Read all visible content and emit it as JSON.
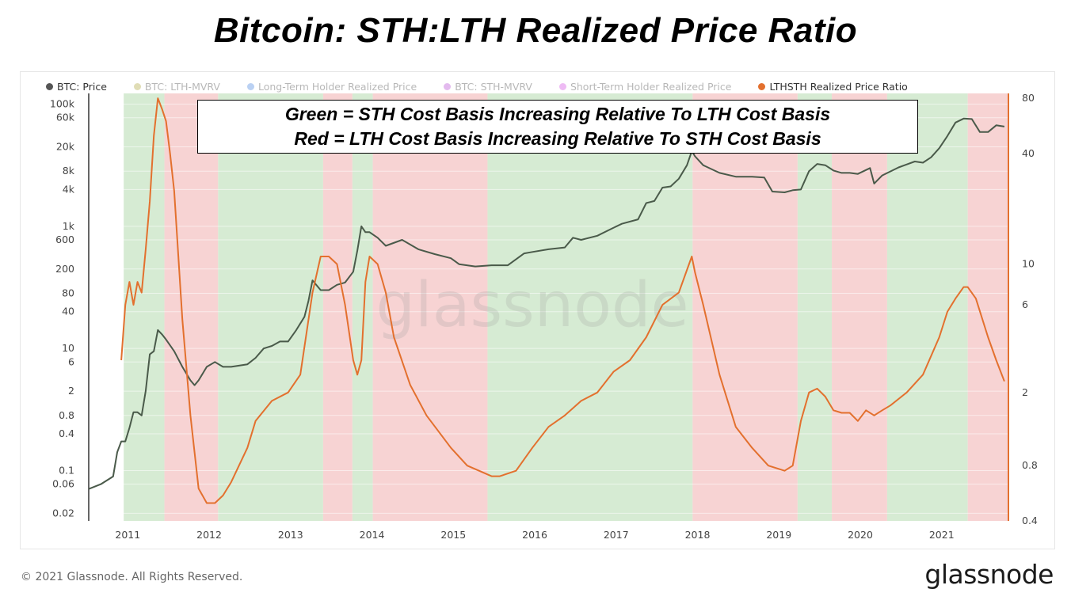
{
  "title": "Bitcoin: STH:LTH Realized Price Ratio",
  "legend": [
    {
      "label": "BTC: Price",
      "color": "#555555",
      "active": true
    },
    {
      "label": "BTC: LTH-MVRV",
      "color": "#a8a030",
      "active": false
    },
    {
      "label": "Long-Term Holder Realized Price",
      "color": "#3b7ddd",
      "active": false
    },
    {
      "label": "BTC: STH-MVRV",
      "color": "#b03bd0",
      "active": false
    },
    {
      "label": "Short-Term Holder Realized Price",
      "color": "#d040e0",
      "active": false
    },
    {
      "label": "LTHSTH Realized Price Ratio",
      "color": "#e3702e",
      "active": true
    }
  ],
  "annotation": {
    "line1": "Green = STH Cost Basis Increasing Relative To LTH Cost Basis",
    "line2": "Red = LTH Cost Basis Increasing Relative To STH Cost Basis"
  },
  "watermark": "glassnode",
  "footer": {
    "copyright": "© 2021 Glassnode. All Rights Reserved.",
    "logo": "glassnode"
  },
  "colors": {
    "price_line": "#4a5a4a",
    "ratio_line": "#e3702e",
    "green_band": "#d6ebd3",
    "red_band": "#f7d3d3"
  },
  "chart_data": {
    "type": "line",
    "x_ticks": [
      "2011",
      "2012",
      "2013",
      "2014",
      "2015",
      "2016",
      "2017",
      "2018",
      "2019",
      "2020",
      "2021"
    ],
    "xlim": [
      2010.55,
      2021.85
    ],
    "left_axis": {
      "scale": "log",
      "ylim": [
        0.015,
        150000
      ],
      "ticks": [
        "100k",
        "60k",
        "20k",
        "8k",
        "4k",
        "1k",
        "600",
        "200",
        "80",
        "40",
        "10",
        "6",
        "2",
        "0.8",
        "0.4",
        "0.1",
        "0.06",
        "0.02"
      ],
      "tick_values": [
        100000,
        60000,
        20000,
        8000,
        4000,
        1000,
        600,
        200,
        80,
        40,
        10,
        6,
        2,
        0.8,
        0.4,
        0.1,
        0.06,
        0.02
      ]
    },
    "right_axis": {
      "scale": "log",
      "ylim": [
        0.4,
        85
      ],
      "ticks": [
        "80",
        "40",
        "10",
        "6",
        "2",
        "0.8",
        "0.4"
      ],
      "tick_values": [
        80,
        40,
        10,
        6,
        2,
        0.8,
        0.4
      ]
    },
    "regimes": [
      {
        "start": 2010.98,
        "end": 2011.48,
        "color": "green"
      },
      {
        "start": 2011.48,
        "end": 2012.14,
        "color": "red"
      },
      {
        "start": 2012.14,
        "end": 2013.43,
        "color": "green"
      },
      {
        "start": 2013.43,
        "end": 2013.79,
        "color": "red"
      },
      {
        "start": 2013.79,
        "end": 2014.04,
        "color": "green"
      },
      {
        "start": 2014.04,
        "end": 2015.45,
        "color": "red"
      },
      {
        "start": 2015.45,
        "end": 2017.97,
        "color": "green"
      },
      {
        "start": 2017.97,
        "end": 2019.26,
        "color": "red"
      },
      {
        "start": 2019.26,
        "end": 2019.68,
        "color": "green"
      },
      {
        "start": 2019.68,
        "end": 2020.36,
        "color": "red"
      },
      {
        "start": 2020.36,
        "end": 2021.35,
        "color": "green"
      },
      {
        "start": 2021.35,
        "end": 2021.85,
        "color": "red"
      }
    ],
    "series": [
      {
        "name": "BTC: Price",
        "axis": "left",
        "x": [
          2010.55,
          2010.7,
          2010.85,
          2010.9,
          2010.95,
          2011.0,
          2011.05,
          2011.1,
          2011.15,
          2011.2,
          2011.25,
          2011.3,
          2011.35,
          2011.4,
          2011.45,
          2011.5,
          2011.6,
          2011.7,
          2011.8,
          2011.85,
          2011.9,
          2012.0,
          2012.1,
          2012.2,
          2012.3,
          2012.5,
          2012.6,
          2012.7,
          2012.8,
          2012.9,
          2013.0,
          2013.1,
          2013.2,
          2013.25,
          2013.3,
          2013.4,
          2013.5,
          2013.6,
          2013.7,
          2013.8,
          2013.85,
          2013.9,
          2013.95,
          2014.0,
          2014.1,
          2014.2,
          2014.4,
          2014.6,
          2014.8,
          2015.0,
          2015.1,
          2015.3,
          2015.5,
          2015.7,
          2015.9,
          2016.0,
          2016.2,
          2016.4,
          2016.5,
          2016.6,
          2016.8,
          2017.0,
          2017.1,
          2017.3,
          2017.4,
          2017.5,
          2017.6,
          2017.7,
          2017.8,
          2017.9,
          2017.96,
          2018.0,
          2018.1,
          2018.3,
          2018.5,
          2018.7,
          2018.85,
          2018.95,
          2019.1,
          2019.2,
          2019.3,
          2019.4,
          2019.5,
          2019.6,
          2019.7,
          2019.8,
          2019.9,
          2020.0,
          2020.15,
          2020.2,
          2020.3,
          2020.5,
          2020.7,
          2020.8,
          2020.9,
          2021.0,
          2021.1,
          2021.2,
          2021.3,
          2021.4,
          2021.5,
          2021.6,
          2021.7,
          2021.8
        ],
        "values": [
          0.05,
          0.06,
          0.08,
          0.2,
          0.3,
          0.3,
          0.5,
          0.9,
          0.9,
          0.8,
          2,
          8,
          9,
          20,
          17,
          14,
          9,
          5,
          3,
          2.5,
          3,
          5,
          6,
          5,
          5,
          5.5,
          7,
          10,
          11,
          13,
          13,
          20,
          33,
          60,
          130,
          90,
          90,
          110,
          120,
          180,
          400,
          1000,
          800,
          800,
          650,
          480,
          600,
          420,
          350,
          300,
          240,
          220,
          230,
          230,
          360,
          380,
          420,
          450,
          650,
          600,
          700,
          950,
          1100,
          1300,
          2400,
          2600,
          4300,
          4500,
          6000,
          10000,
          17000,
          14000,
          10000,
          7500,
          6500,
          6500,
          6300,
          3700,
          3600,
          3900,
          4000,
          8000,
          10500,
          10000,
          8200,
          7500,
          7500,
          7200,
          9000,
          5000,
          6800,
          9200,
          11500,
          11000,
          13500,
          19000,
          30000,
          50000,
          58000,
          57000,
          35000,
          35000,
          45000,
          43000
        ]
      },
      {
        "name": "LTHSTH Realized Price Ratio",
        "axis": "right",
        "x": [
          2010.95,
          2011.0,
          2011.05,
          2011.1,
          2011.15,
          2011.2,
          2011.25,
          2011.3,
          2011.35,
          2011.4,
          2011.45,
          2011.5,
          2011.55,
          2011.6,
          2011.7,
          2011.8,
          2011.9,
          2012.0,
          2012.1,
          2012.2,
          2012.3,
          2012.5,
          2012.6,
          2012.8,
          2013.0,
          2013.15,
          2013.3,
          2013.4,
          2013.5,
          2013.6,
          2013.7,
          2013.8,
          2013.85,
          2013.9,
          2013.95,
          2014.0,
          2014.1,
          2014.2,
          2014.3,
          2014.5,
          2014.7,
          2015.0,
          2015.2,
          2015.5,
          2015.6,
          2015.8,
          2016.0,
          2016.2,
          2016.4,
          2016.6,
          2016.8,
          2017.0,
          2017.2,
          2017.4,
          2017.6,
          2017.8,
          2017.96,
          2018.0,
          2018.1,
          2018.3,
          2018.5,
          2018.7,
          2018.9,
          2019.1,
          2019.2,
          2019.3,
          2019.4,
          2019.5,
          2019.6,
          2019.7,
          2019.8,
          2019.9,
          2020.0,
          2020.1,
          2020.2,
          2020.3,
          2020.4,
          2020.6,
          2020.8,
          2021.0,
          2021.1,
          2021.2,
          2021.3,
          2021.35,
          2021.45,
          2021.6,
          2021.7,
          2021.8
        ],
        "values": [
          3.0,
          6,
          8,
          6,
          8,
          7,
          12,
          22,
          50,
          80,
          70,
          60,
          40,
          25,
          5,
          1.5,
          0.6,
          0.5,
          0.5,
          0.55,
          0.65,
          1.0,
          1.4,
          1.8,
          2.0,
          2.5,
          7,
          11,
          11,
          10,
          6,
          3,
          2.5,
          3,
          8,
          11,
          10,
          7,
          4,
          2.2,
          1.5,
          1.0,
          0.8,
          0.7,
          0.7,
          0.75,
          1.0,
          1.3,
          1.5,
          1.8,
          2.0,
          2.6,
          3.0,
          4.0,
          6,
          7,
          11,
          9,
          6,
          2.5,
          1.3,
          1.0,
          0.8,
          0.75,
          0.8,
          1.4,
          2.0,
          2.1,
          1.9,
          1.6,
          1.55,
          1.55,
          1.4,
          1.6,
          1.5,
          1.6,
          1.7,
          2.0,
          2.5,
          4.0,
          5.5,
          6.5,
          7.5,
          7.5,
          6.5,
          4.0,
          3.0,
          2.3
        ]
      }
    ]
  }
}
